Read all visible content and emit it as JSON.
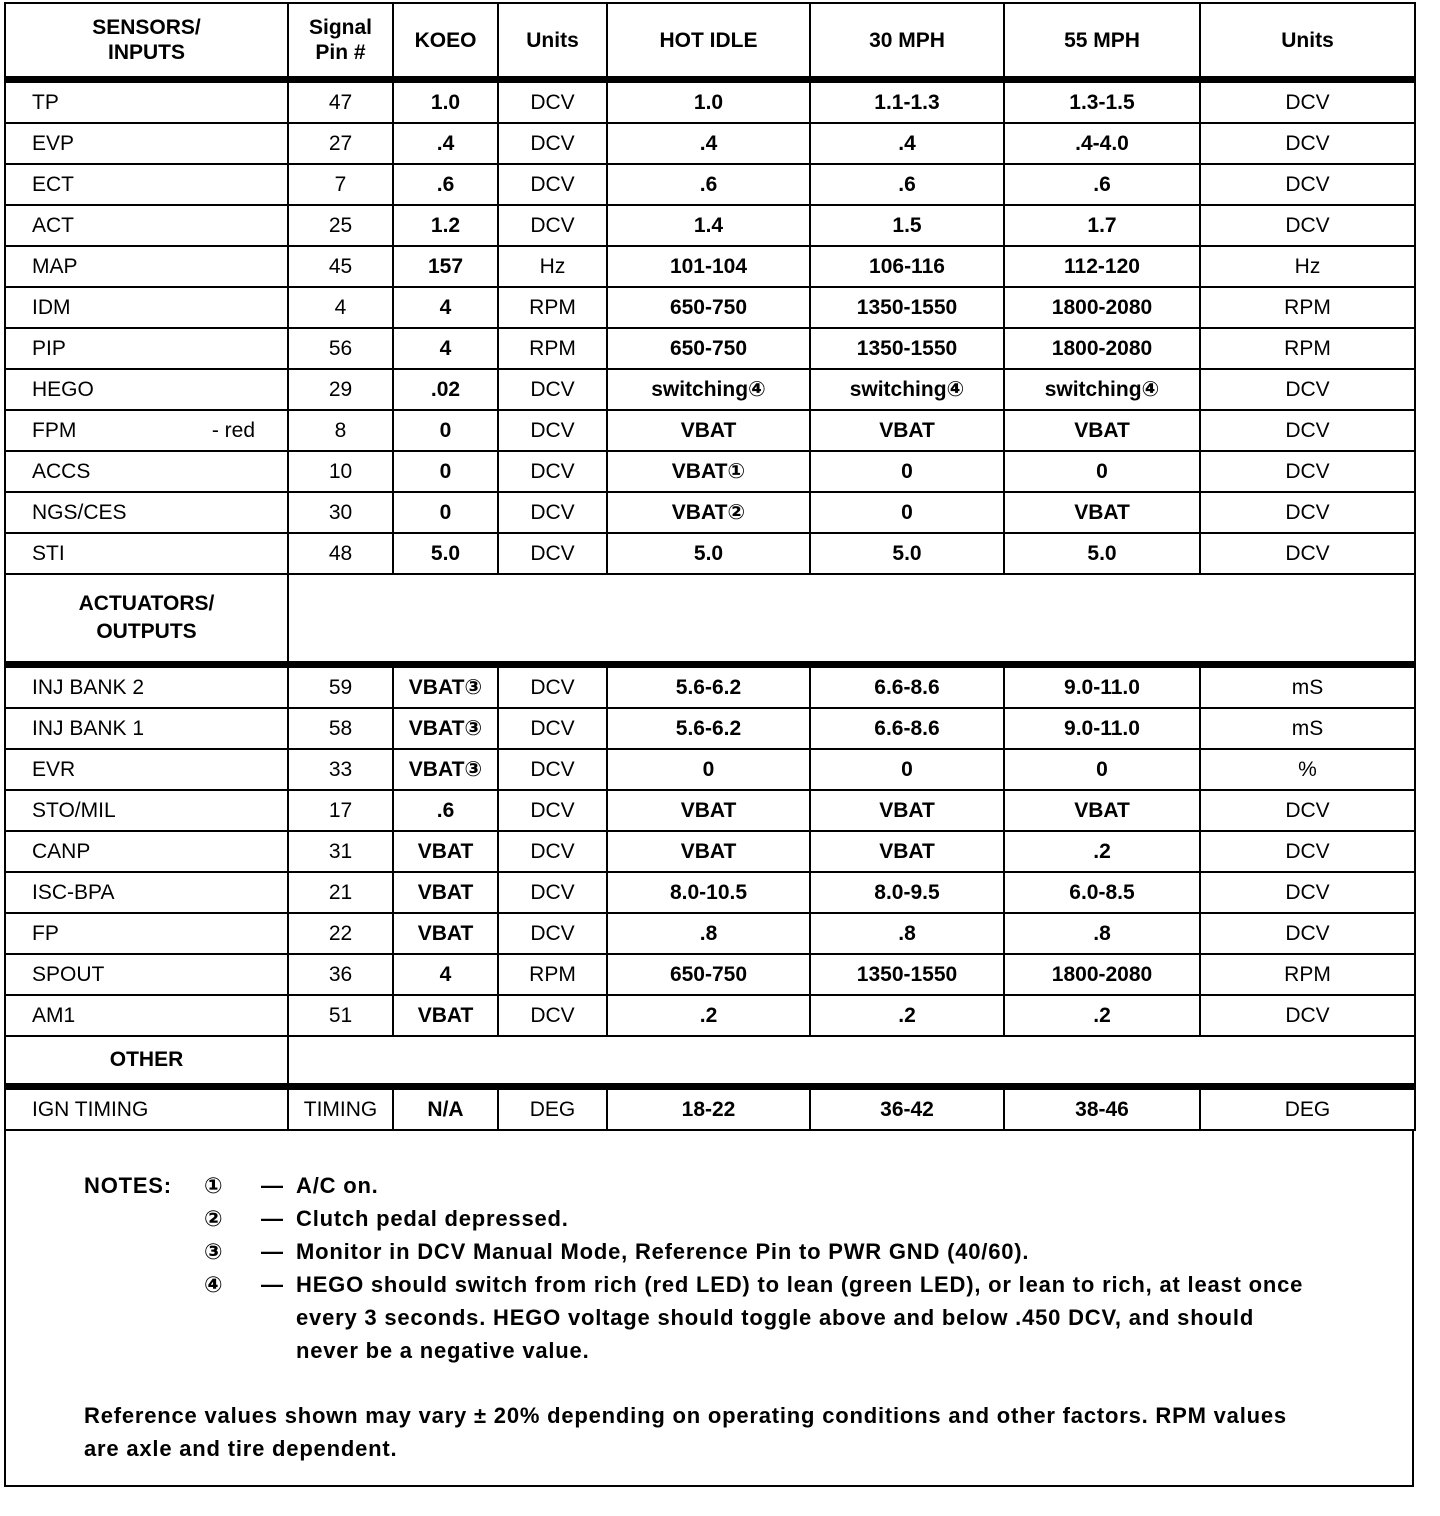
{
  "header": {
    "sensors_inputs": "SENSORS/ INPUTS",
    "signal_pin": "Signal Pin #",
    "koeo": "KOEO",
    "units1": "Units",
    "hot_idle": "HOT IDLE",
    "mph30": "30 MPH",
    "mph55": "55 MPH",
    "units2": "Units"
  },
  "sensors": [
    [
      "TP",
      "47",
      "1.0",
      "DCV",
      "1.0",
      "1.1-1.3",
      "1.3-1.5",
      "DCV"
    ],
    [
      "EVP",
      "27",
      ".4",
      "DCV",
      ".4",
      ".4",
      ".4-4.0",
      "DCV"
    ],
    [
      "ECT",
      "7",
      ".6",
      "DCV",
      ".6",
      ".6",
      ".6",
      "DCV"
    ],
    [
      "ACT",
      "25",
      "1.2",
      "DCV",
      "1.4",
      "1.5",
      "1.7",
      "DCV"
    ],
    [
      "MAP",
      "45",
      "157",
      "Hz",
      "101-104",
      "106-116",
      "112-120",
      "Hz"
    ],
    [
      "IDM",
      "4",
      "4",
      "RPM",
      "650-750",
      "1350-1550",
      "1800-2080",
      "RPM"
    ],
    [
      "PIP",
      "56",
      "4",
      "RPM",
      "650-750",
      "1350-1550",
      "1800-2080",
      "RPM"
    ],
    [
      "HEGO",
      "29",
      ".02",
      "DCV",
      "switching④",
      "switching④",
      "switching④",
      "DCV"
    ],
    [
      "FPM",
      "8",
      "0",
      "DCV",
      "VBAT",
      "VBAT",
      "VBAT",
      "DCV"
    ],
    [
      "ACCS",
      "10",
      "0",
      "DCV",
      "VBAT①",
      "0",
      "0",
      "DCV"
    ],
    [
      "NGS/CES",
      "30",
      "0",
      "DCV",
      "VBAT②",
      "0",
      "VBAT",
      "DCV"
    ],
    [
      "STI",
      "48",
      "5.0",
      "DCV",
      "5.0",
      "5.0",
      "5.0",
      "DCV"
    ]
  ],
  "fpm_note": "- red",
  "actuators_label": "ACTUATORS/ OUTPUTS",
  "actuators": [
    [
      "INJ BANK 2",
      "59",
      "VBAT③",
      "DCV",
      "5.6-6.2",
      "6.6-8.6",
      "9.0-11.0",
      "mS"
    ],
    [
      "INJ BANK 1",
      "58",
      "VBAT③",
      "DCV",
      "5.6-6.2",
      "6.6-8.6",
      "9.0-11.0",
      "mS"
    ],
    [
      "EVR",
      "33",
      "VBAT③",
      "DCV",
      "0",
      "0",
      "0",
      "%"
    ],
    [
      "STO/MIL",
      "17",
      ".6",
      "DCV",
      "VBAT",
      "VBAT",
      "VBAT",
      "DCV"
    ],
    [
      "CANP",
      "31",
      "VBAT",
      "DCV",
      "VBAT",
      "VBAT",
      ".2",
      "DCV"
    ],
    [
      "ISC-BPA",
      "21",
      "VBAT",
      "DCV",
      "8.0-10.5",
      "8.0-9.5",
      "6.0-8.5",
      "DCV"
    ],
    [
      "FP",
      "22",
      "VBAT",
      "DCV",
      ".8",
      ".8",
      ".8",
      "DCV"
    ],
    [
      "SPOUT",
      "36",
      "4",
      "RPM",
      "650-750",
      "1350-1550",
      "1800-2080",
      "RPM"
    ],
    [
      "AM1",
      "51",
      "VBAT",
      "DCV",
      ".2",
      ".2",
      ".2",
      "DCV"
    ]
  ],
  "other_label": "OTHER",
  "other": [
    [
      "IGN TIMING",
      "TIMING",
      "N/A",
      "DEG",
      "18-22",
      "36-42",
      "38-46",
      "DEG"
    ]
  ],
  "notes": {
    "label": "NOTES:",
    "items": [
      {
        "num": "①",
        "text": "A/C on."
      },
      {
        "num": "②",
        "text": "Clutch pedal depressed."
      },
      {
        "num": "③",
        "text": "Monitor in DCV Manual Mode, Reference Pin to PWR GND (40/60)."
      },
      {
        "num": "④",
        "text": "HEGO should switch from rich (red LED) to lean (green LED), or lean to rich, at least once every 3 seconds. HEGO voltage should toggle above and below .450 DCV, and should never be a negative value."
      }
    ],
    "dash": "—",
    "footer": "Reference values shown may vary ± 20% depending on operating conditions and other factors. RPM values are axle and tire dependent."
  }
}
